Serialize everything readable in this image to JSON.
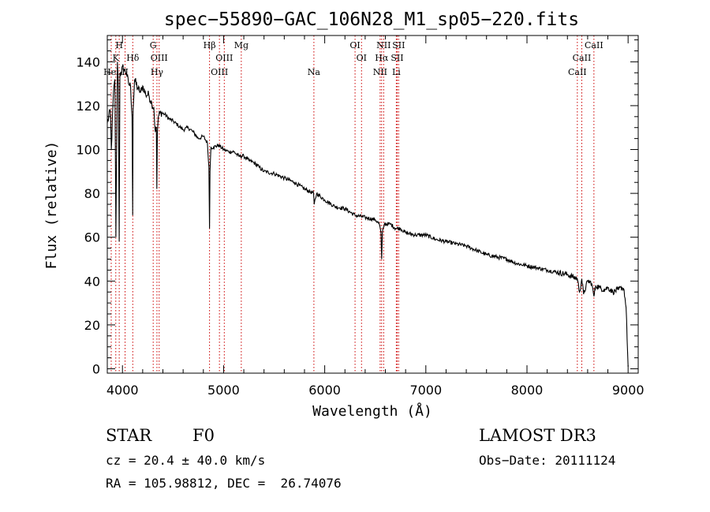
{
  "chart_data": {
    "type": "line",
    "title": "spec−55890−GAC_106N28_M1_sp05−220.fits",
    "xlabel": "Wavelength (Å)",
    "ylabel": "Flux (relative)",
    "xlim": [
      3850,
      9100
    ],
    "ylim": [
      -2,
      152
    ],
    "x_ticks": [
      4000,
      5000,
      6000,
      7000,
      8000,
      9000
    ],
    "y_ticks": [
      0,
      20,
      40,
      60,
      80,
      100,
      120,
      140
    ],
    "series": [
      {
        "name": "flux",
        "x": [
          3850,
          3880,
          3890,
          3910,
          3925,
          3935,
          3950,
          3960,
          3968,
          3975,
          3990,
          4000,
          4020,
          4040,
          4060,
          4080,
          4095,
          4101,
          4105,
          4120,
          4150,
          4180,
          4200,
          4230,
          4260,
          4290,
          4310,
          4325,
          4335,
          4340,
          4345,
          4355,
          4380,
          4420,
          4460,
          4500,
          4550,
          4600,
          4650,
          4700,
          4750,
          4800,
          4840,
          4855,
          4861,
          4866,
          4875,
          4900,
          4950,
          5000,
          5050,
          5100,
          5150,
          5200,
          5250,
          5300,
          5350,
          5400,
          5500,
          5600,
          5700,
          5800,
          5890,
          5896,
          5920,
          6000,
          6100,
          6200,
          6300,
          6400,
          6500,
          6540,
          6556,
          6563,
          6570,
          6590,
          6650,
          6700,
          6750,
          6800,
          6900,
          7000,
          7100,
          7200,
          7300,
          7400,
          7500,
          7600,
          7700,
          7800,
          7900,
          8000,
          8100,
          8200,
          8300,
          8400,
          8498,
          8520,
          8542,
          8560,
          8600,
          8640,
          8662,
          8680,
          8720,
          8760,
          8800,
          8850,
          8900,
          8940,
          8960,
          8980,
          9000
        ],
        "values": [
          112,
          118,
          100,
          125,
          132,
          60,
          140,
          128,
          58,
          135,
          134,
          138,
          136,
          135,
          130,
          129,
          115,
          70,
          118,
          132,
          128,
          126,
          129,
          125,
          125,
          121,
          119,
          108,
          110,
          82,
          108,
          115,
          117,
          116,
          114,
          113,
          111,
          109,
          110,
          108,
          105,
          106,
          103,
          92,
          64,
          90,
          101,
          101,
          102,
          100,
          99,
          99,
          97,
          97,
          95,
          94,
          92,
          90,
          89,
          87,
          85,
          82,
          80,
          75,
          80,
          77,
          74,
          73,
          70,
          69,
          68,
          66,
          62,
          50,
          62,
          66,
          66,
          64,
          64,
          62,
          61,
          61,
          59,
          58,
          57,
          56,
          54,
          52,
          51,
          50,
          48,
          47,
          46,
          45,
          44,
          43,
          41,
          35,
          41,
          34,
          40,
          39,
          33,
          38,
          37,
          36,
          37,
          35,
          36,
          37,
          36,
          28,
          1
        ]
      }
    ],
    "spectral_lines": [
      {
        "label": "Hel",
        "wavelength": 3889,
        "row": 3
      },
      {
        "label": "K",
        "wavelength": 3934,
        "row": 2
      },
      {
        "label": "H",
        "wavelength": 3968,
        "row": 1
      },
      {
        "label": "II",
        "wavelength": 4026,
        "row": 3
      },
      {
        "label": "Hδ",
        "wavelength": 4102,
        "row": 2
      },
      {
        "label": "G",
        "wavelength": 4304,
        "row": 1
      },
      {
        "label": "Hγ",
        "wavelength": 4341,
        "row": 3
      },
      {
        "label": "OIII",
        "wavelength": 4363,
        "row": 2
      },
      {
        "label": "Hβ",
        "wavelength": 4861,
        "row": 1
      },
      {
        "label": "OIII",
        "wavelength": 4959,
        "row": 3
      },
      {
        "label": "OIII",
        "wavelength": 5007,
        "row": 2
      },
      {
        "label": "Mg",
        "wavelength": 5175,
        "row": 1
      },
      {
        "label": "Na",
        "wavelength": 5893,
        "row": 3
      },
      {
        "label": "OI",
        "wavelength": 6300,
        "row": 1
      },
      {
        "label": "OI",
        "wavelength": 6364,
        "row": 2
      },
      {
        "label": "NII",
        "wavelength": 6548,
        "row": 3
      },
      {
        "label": "NII",
        "wavelength": 6583,
        "row": 1
      },
      {
        "label": "Hα",
        "wavelength": 6563,
        "row": 2
      },
      {
        "label": "Li",
        "wavelength": 6708,
        "row": 3
      },
      {
        "label": "SII",
        "wavelength": 6717,
        "row": 2
      },
      {
        "label": "SII",
        "wavelength": 6731,
        "row": 1
      },
      {
        "label": "CaII",
        "wavelength": 8498,
        "row": 3
      },
      {
        "label": "CaII",
        "wavelength": 8542,
        "row": 2
      },
      {
        "label": "CaII",
        "wavelength": 8662,
        "row": 1
      }
    ],
    "grid": false,
    "line_color": "#000000",
    "marker_color": "#cc0000"
  },
  "info": {
    "object_class": "STAR",
    "subclass": "F0",
    "survey": "LAMOST DR3",
    "redshift": "cz = 20.4 ± 40.0 km/s",
    "obs_date": "Obs−Date: 20111124",
    "coords": "RA = 105.98812, DEC =  26.74076"
  }
}
